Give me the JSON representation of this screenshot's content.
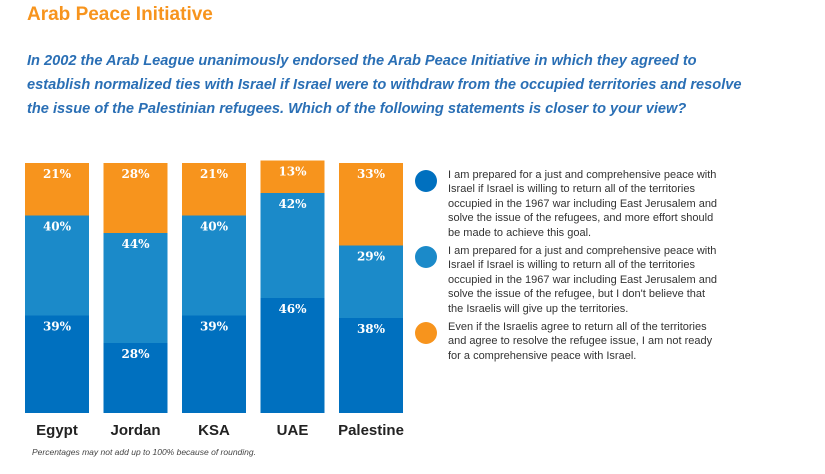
{
  "title": "Arab Peace Initiative",
  "question": "In 2002 the Arab League unanimously endorsed the Arab Peace Initiative in which they agreed to establish normalized ties with Israel if Israel were to withdraw from the occupied territories and resolve the issue of the Palestinian refugees. Which of the following statements is closer to your view?",
  "note": "Percentages may not add up to 100% because of rounding.",
  "colors": {
    "dark_blue": "#0070bf",
    "light_blue": "#1b8ac9",
    "orange": "#f7941d"
  },
  "legend": [
    {
      "color": "#0070bf",
      "text": "I am prepared for a just and comprehensive peace with Israel if Israel is willing to return all of the territories occupied in the 1967 war including East Jerusalem and solve the issue of the refugees, and more effort should be made to achieve this goal."
    },
    {
      "color": "#1b8ac9",
      "text": "I am prepared for a just and comprehensive peace with Israel if Israel is willing to return all of the territories occupied in the 1967 war including East Jerusalem and solve the issue of the refugee, but I don't believe that the Israelis will give up the territories."
    },
    {
      "color": "#f7941d",
      "text": "Even if the Israelis agree to return all of the territories and agree to resolve the refugee issue, I am not ready for a comprehensive peace with Israel."
    }
  ],
  "chart_data": {
    "type": "bar",
    "stacked": true,
    "orientation": "vertical",
    "categories": [
      "Egypt",
      "Jordan",
      "KSA",
      "UAE",
      "Palestine"
    ],
    "series": [
      {
        "name": "Prepared for peace; more effort should be made",
        "color": "#0070bf",
        "values": [
          39,
          28,
          39,
          46,
          38
        ]
      },
      {
        "name": "Prepared for peace; but don't believe Israelis will give up territories",
        "color": "#1b8ac9",
        "values": [
          40,
          44,
          40,
          42,
          29
        ]
      },
      {
        "name": "Not ready for comprehensive peace",
        "color": "#f7941d",
        "values": [
          21,
          28,
          21,
          13,
          33
        ]
      }
    ],
    "value_suffix": "%",
    "ylim": [
      0,
      100
    ],
    "grid": false,
    "axes_visible": false,
    "legend_position": "right",
    "title": "",
    "xlabel": "",
    "ylabel": ""
  }
}
